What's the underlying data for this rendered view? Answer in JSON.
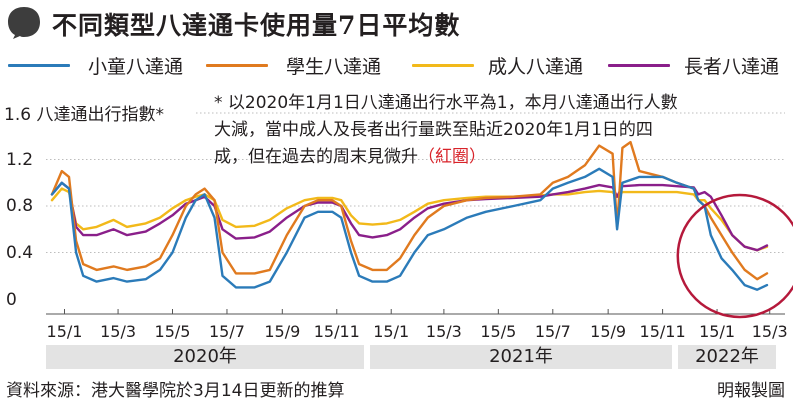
{
  "title": "不同類型八達通卡使用量7日平均數",
  "legend": [
    {
      "label": "小童八達通",
      "color": "#2b7bb9"
    },
    {
      "label": "學生八達通",
      "color": "#e07a1f"
    },
    {
      "label": "成人八達通",
      "color": "#f2b91a"
    },
    {
      "label": "長者八達通",
      "color": "#8a1f8a"
    }
  ],
  "y_caption": "1.6 八達通出行指數*",
  "note": {
    "line1": "* 以2020年1月1日八達通出行水平為1，本月八達通出行人數",
    "line2": "大減，當中成人及長者出行量跌至貼近2020年1月1日的四",
    "line3_text": "成，但在過去的周末見微升",
    "line3_mark": "（紅圈）"
  },
  "year_labels": [
    "2020年",
    "2021年",
    "2022年"
  ],
  "source": "資料來源：港大醫學院於3月14日更新的推算",
  "credit": "明報製圖",
  "chart_data": {
    "type": "line",
    "ylabel": "八達通出行指數*",
    "ylim": [
      0,
      1.6
    ],
    "yticks": [
      {
        "value": 0,
        "label": "0"
      },
      {
        "value": 0.4,
        "label": "0.4"
      },
      {
        "value": 0.8,
        "label": "0.8"
      },
      {
        "value": 1.2,
        "label": "1.2"
      },
      {
        "value": 1.6,
        "label": "1.6"
      }
    ],
    "xlim": [
      "2020-01-01",
      "2022-03-31"
    ],
    "xticks": [
      {
        "date": "2020-01-15",
        "label": "15/1"
      },
      {
        "date": "2020-03-15",
        "label": "15/3"
      },
      {
        "date": "2020-05-15",
        "label": "15/5"
      },
      {
        "date": "2020-07-15",
        "label": "15/7"
      },
      {
        "date": "2020-09-15",
        "label": "15/9"
      },
      {
        "date": "2020-11-15",
        "label": "15/11"
      },
      {
        "date": "2021-01-15",
        "label": "15/1"
      },
      {
        "date": "2021-03-15",
        "label": "15/3"
      },
      {
        "date": "2021-05-15",
        "label": "15/5"
      },
      {
        "date": "2021-07-15",
        "label": "15/7"
      },
      {
        "date": "2021-09-15",
        "label": "15/9"
      },
      {
        "date": "2021-11-15",
        "label": "15/11"
      },
      {
        "date": "2022-01-15",
        "label": "15/1"
      },
      {
        "date": "2022-03-15",
        "label": "15/3"
      }
    ],
    "series": [
      {
        "name": "小童八達通",
        "color": "#2b7bb9",
        "points": [
          [
            "2020-01-01",
            0.9
          ],
          [
            "2020-01-12",
            1.0
          ],
          [
            "2020-01-20",
            0.95
          ],
          [
            "2020-01-28",
            0.4
          ],
          [
            "2020-02-05",
            0.2
          ],
          [
            "2020-02-20",
            0.15
          ],
          [
            "2020-03-10",
            0.18
          ],
          [
            "2020-03-25",
            0.15
          ],
          [
            "2020-04-15",
            0.17
          ],
          [
            "2020-05-01",
            0.25
          ],
          [
            "2020-05-15",
            0.4
          ],
          [
            "2020-05-30",
            0.7
          ],
          [
            "2020-06-10",
            0.85
          ],
          [
            "2020-06-20",
            0.9
          ],
          [
            "2020-07-01",
            0.7
          ],
          [
            "2020-07-10",
            0.2
          ],
          [
            "2020-07-25",
            0.1
          ],
          [
            "2020-08-15",
            0.1
          ],
          [
            "2020-09-01",
            0.15
          ],
          [
            "2020-09-20",
            0.4
          ],
          [
            "2020-10-10",
            0.7
          ],
          [
            "2020-10-25",
            0.75
          ],
          [
            "2020-11-10",
            0.75
          ],
          [
            "2020-11-20",
            0.7
          ],
          [
            "2020-12-01",
            0.4
          ],
          [
            "2020-12-10",
            0.2
          ],
          [
            "2020-12-25",
            0.15
          ],
          [
            "2021-01-10",
            0.15
          ],
          [
            "2021-01-25",
            0.2
          ],
          [
            "2021-02-10",
            0.4
          ],
          [
            "2021-02-25",
            0.55
          ],
          [
            "2021-03-15",
            0.6
          ],
          [
            "2021-04-10",
            0.7
          ],
          [
            "2021-05-01",
            0.75
          ],
          [
            "2021-06-01",
            0.8
          ],
          [
            "2021-07-01",
            0.85
          ],
          [
            "2021-07-15",
            0.95
          ],
          [
            "2021-08-01",
            1.0
          ],
          [
            "2021-08-20",
            1.05
          ],
          [
            "2021-09-05",
            1.12
          ],
          [
            "2021-09-20",
            1.05
          ],
          [
            "2021-09-25",
            0.6
          ],
          [
            "2021-10-01",
            1.0
          ],
          [
            "2021-10-20",
            1.05
          ],
          [
            "2021-11-15",
            1.05
          ],
          [
            "2021-12-01",
            1.0
          ],
          [
            "2021-12-20",
            0.95
          ],
          [
            "2021-12-25",
            0.85
          ],
          [
            "2022-01-01",
            0.8
          ],
          [
            "2022-01-08",
            0.55
          ],
          [
            "2022-01-20",
            0.35
          ],
          [
            "2022-02-01",
            0.25
          ],
          [
            "2022-02-15",
            0.12
          ],
          [
            "2022-03-01",
            0.08
          ],
          [
            "2022-03-12",
            0.12
          ]
        ]
      },
      {
        "name": "學生八達通",
        "color": "#e07a1f",
        "points": [
          [
            "2020-01-01",
            0.9
          ],
          [
            "2020-01-12",
            1.1
          ],
          [
            "2020-01-20",
            1.05
          ],
          [
            "2020-01-28",
            0.5
          ],
          [
            "2020-02-05",
            0.3
          ],
          [
            "2020-02-20",
            0.25
          ],
          [
            "2020-03-10",
            0.28
          ],
          [
            "2020-03-25",
            0.25
          ],
          [
            "2020-04-15",
            0.28
          ],
          [
            "2020-05-01",
            0.35
          ],
          [
            "2020-05-15",
            0.55
          ],
          [
            "2020-05-30",
            0.8
          ],
          [
            "2020-06-10",
            0.9
          ],
          [
            "2020-06-20",
            0.95
          ],
          [
            "2020-07-01",
            0.85
          ],
          [
            "2020-07-10",
            0.4
          ],
          [
            "2020-07-25",
            0.22
          ],
          [
            "2020-08-15",
            0.22
          ],
          [
            "2020-09-01",
            0.25
          ],
          [
            "2020-09-20",
            0.55
          ],
          [
            "2020-10-10",
            0.8
          ],
          [
            "2020-10-25",
            0.85
          ],
          [
            "2020-11-10",
            0.85
          ],
          [
            "2020-11-20",
            0.8
          ],
          [
            "2020-12-01",
            0.5
          ],
          [
            "2020-12-10",
            0.3
          ],
          [
            "2020-12-25",
            0.25
          ],
          [
            "2021-01-10",
            0.25
          ],
          [
            "2021-01-25",
            0.35
          ],
          [
            "2021-02-10",
            0.55
          ],
          [
            "2021-02-25",
            0.7
          ],
          [
            "2021-03-15",
            0.8
          ],
          [
            "2021-04-10",
            0.85
          ],
          [
            "2021-05-01",
            0.87
          ],
          [
            "2021-06-01",
            0.88
          ],
          [
            "2021-07-01",
            0.9
          ],
          [
            "2021-07-15",
            1.0
          ],
          [
            "2021-08-01",
            1.05
          ],
          [
            "2021-08-20",
            1.15
          ],
          [
            "2021-09-05",
            1.32
          ],
          [
            "2021-09-20",
            1.25
          ],
          [
            "2021-09-25",
            0.62
          ],
          [
            "2021-10-01",
            1.3
          ],
          [
            "2021-10-10",
            1.35
          ],
          [
            "2021-10-20",
            1.1
          ],
          [
            "2021-11-15",
            1.05
          ],
          [
            "2021-12-01",
            1.0
          ],
          [
            "2021-12-20",
            0.95
          ],
          [
            "2021-12-25",
            0.85
          ],
          [
            "2022-01-01",
            0.8
          ],
          [
            "2022-01-08",
            0.7
          ],
          [
            "2022-01-20",
            0.55
          ],
          [
            "2022-02-01",
            0.4
          ],
          [
            "2022-02-15",
            0.25
          ],
          [
            "2022-03-01",
            0.17
          ],
          [
            "2022-03-12",
            0.22
          ]
        ]
      },
      {
        "name": "成人八達通",
        "color": "#f2b91a",
        "points": [
          [
            "2020-01-01",
            0.85
          ],
          [
            "2020-01-12",
            0.95
          ],
          [
            "2020-01-20",
            0.92
          ],
          [
            "2020-01-28",
            0.65
          ],
          [
            "2020-02-05",
            0.6
          ],
          [
            "2020-02-20",
            0.62
          ],
          [
            "2020-03-10",
            0.68
          ],
          [
            "2020-03-25",
            0.62
          ],
          [
            "2020-04-15",
            0.65
          ],
          [
            "2020-05-01",
            0.7
          ],
          [
            "2020-05-15",
            0.78
          ],
          [
            "2020-05-30",
            0.85
          ],
          [
            "2020-06-10",
            0.88
          ],
          [
            "2020-06-20",
            0.9
          ],
          [
            "2020-07-01",
            0.85
          ],
          [
            "2020-07-10",
            0.68
          ],
          [
            "2020-07-25",
            0.62
          ],
          [
            "2020-08-15",
            0.63
          ],
          [
            "2020-09-01",
            0.68
          ],
          [
            "2020-09-20",
            0.78
          ],
          [
            "2020-10-10",
            0.85
          ],
          [
            "2020-10-25",
            0.87
          ],
          [
            "2020-11-10",
            0.87
          ],
          [
            "2020-11-20",
            0.85
          ],
          [
            "2020-12-01",
            0.72
          ],
          [
            "2020-12-10",
            0.65
          ],
          [
            "2020-12-25",
            0.64
          ],
          [
            "2021-01-10",
            0.65
          ],
          [
            "2021-01-25",
            0.68
          ],
          [
            "2021-02-10",
            0.75
          ],
          [
            "2021-02-25",
            0.82
          ],
          [
            "2021-03-15",
            0.85
          ],
          [
            "2021-04-10",
            0.87
          ],
          [
            "2021-05-01",
            0.88
          ],
          [
            "2021-06-01",
            0.88
          ],
          [
            "2021-07-01",
            0.89
          ],
          [
            "2021-07-15",
            0.9
          ],
          [
            "2021-08-01",
            0.9
          ],
          [
            "2021-08-20",
            0.92
          ],
          [
            "2021-09-05",
            0.93
          ],
          [
            "2021-09-20",
            0.92
          ],
          [
            "2021-09-25",
            0.88
          ],
          [
            "2021-10-01",
            0.92
          ],
          [
            "2021-10-20",
            0.92
          ],
          [
            "2021-11-15",
            0.92
          ],
          [
            "2021-12-01",
            0.92
          ],
          [
            "2021-12-20",
            0.9
          ],
          [
            "2021-12-25",
            0.85
          ],
          [
            "2022-01-01",
            0.85
          ],
          [
            "2022-01-08",
            0.78
          ],
          [
            "2022-01-20",
            0.68
          ],
          [
            "2022-02-01",
            0.55
          ],
          [
            "2022-02-15",
            0.45
          ],
          [
            "2022-03-01",
            0.42
          ],
          [
            "2022-03-12",
            0.45
          ]
        ]
      },
      {
        "name": "長者八達通",
        "color": "#8a1f8a",
        "points": [
          [
            "2020-01-01",
            0.9
          ],
          [
            "2020-01-12",
            1.0
          ],
          [
            "2020-01-20",
            0.95
          ],
          [
            "2020-01-28",
            0.62
          ],
          [
            "2020-02-05",
            0.55
          ],
          [
            "2020-02-20",
            0.55
          ],
          [
            "2020-03-10",
            0.6
          ],
          [
            "2020-03-25",
            0.55
          ],
          [
            "2020-04-15",
            0.58
          ],
          [
            "2020-05-01",
            0.65
          ],
          [
            "2020-05-15",
            0.72
          ],
          [
            "2020-05-30",
            0.82
          ],
          [
            "2020-06-10",
            0.85
          ],
          [
            "2020-06-20",
            0.88
          ],
          [
            "2020-07-01",
            0.8
          ],
          [
            "2020-07-10",
            0.6
          ],
          [
            "2020-07-25",
            0.52
          ],
          [
            "2020-08-15",
            0.53
          ],
          [
            "2020-09-01",
            0.58
          ],
          [
            "2020-09-20",
            0.7
          ],
          [
            "2020-10-10",
            0.8
          ],
          [
            "2020-10-25",
            0.83
          ],
          [
            "2020-11-10",
            0.83
          ],
          [
            "2020-11-20",
            0.8
          ],
          [
            "2020-12-01",
            0.65
          ],
          [
            "2020-12-10",
            0.55
          ],
          [
            "2020-12-25",
            0.53
          ],
          [
            "2021-01-10",
            0.55
          ],
          [
            "2021-01-25",
            0.6
          ],
          [
            "2021-02-10",
            0.7
          ],
          [
            "2021-02-25",
            0.78
          ],
          [
            "2021-03-15",
            0.82
          ],
          [
            "2021-04-10",
            0.85
          ],
          [
            "2021-05-01",
            0.86
          ],
          [
            "2021-06-01",
            0.87
          ],
          [
            "2021-07-01",
            0.88
          ],
          [
            "2021-07-15",
            0.9
          ],
          [
            "2021-08-01",
            0.92
          ],
          [
            "2021-08-20",
            0.95
          ],
          [
            "2021-09-05",
            0.98
          ],
          [
            "2021-09-20",
            0.96
          ],
          [
            "2021-09-25",
            0.88
          ],
          [
            "2021-10-01",
            0.97
          ],
          [
            "2021-10-20",
            0.98
          ],
          [
            "2021-11-15",
            0.98
          ],
          [
            "2021-12-01",
            0.97
          ],
          [
            "2021-12-20",
            0.96
          ],
          [
            "2021-12-25",
            0.9
          ],
          [
            "2022-01-01",
            0.92
          ],
          [
            "2022-01-08",
            0.88
          ],
          [
            "2022-01-20",
            0.72
          ],
          [
            "2022-02-01",
            0.55
          ],
          [
            "2022-02-15",
            0.45
          ],
          [
            "2022-03-01",
            0.42
          ],
          [
            "2022-03-12",
            0.46
          ]
        ]
      }
    ],
    "grid": true,
    "annotation": {
      "type": "circle",
      "color": "#b5193b",
      "label": "紅圈"
    }
  }
}
